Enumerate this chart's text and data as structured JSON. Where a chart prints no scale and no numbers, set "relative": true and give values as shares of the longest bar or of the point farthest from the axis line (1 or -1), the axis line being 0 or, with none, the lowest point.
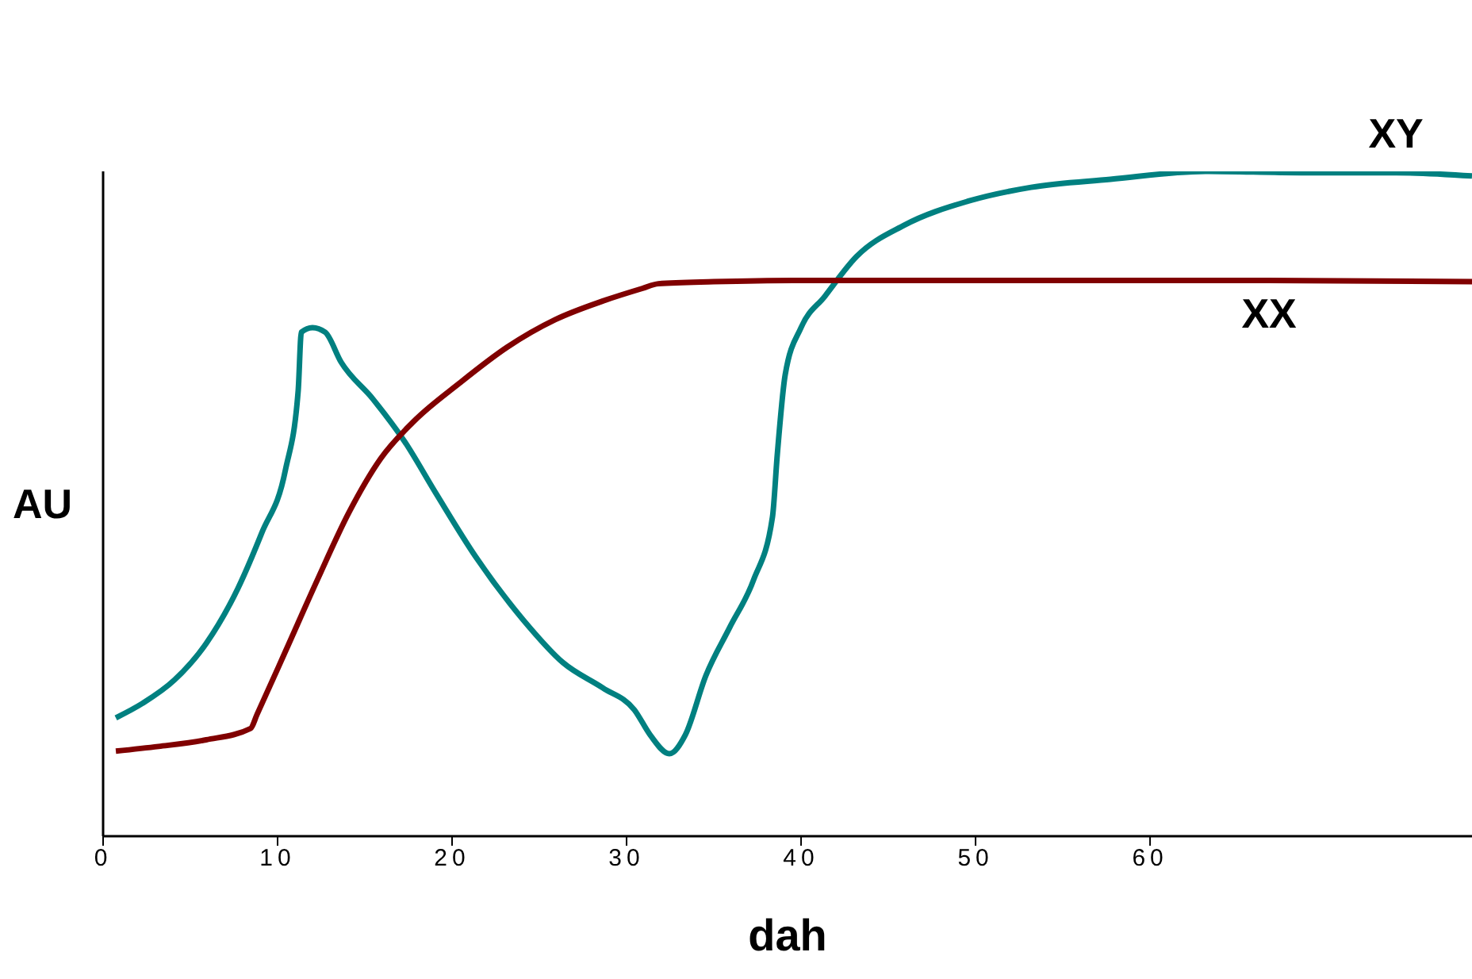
{
  "chart_data": {
    "type": "line",
    "xlabel": "dah",
    "ylabel": "AU",
    "relative": true,
    "xlim": [
      0,
      78.45
    ],
    "xticks": [
      0,
      10,
      20,
      30,
      40,
      50,
      60
    ],
    "grid": false,
    "legend": false,
    "marker": "none",
    "line_style": "solid",
    "series": [
      {
        "name": "XY",
        "color": "#008080",
        "x": [
          0.73,
          2.27,
          4.09,
          5.91,
          7.73,
          9.09,
          10.45,
          11.18,
          11.36,
          12,
          12.73,
          13.64,
          15.45,
          17.27,
          19.09,
          21.36,
          24.09,
          26.36,
          28.64,
          30.45,
          31.36,
          32.45,
          33.36,
          34.55,
          35.91,
          37.27,
          38.36,
          38.64,
          39.09,
          40,
          41.36,
          43.18,
          45.91,
          49.55,
          53.18,
          57.73,
          63.18,
          68.64,
          74.09,
          78.45
        ],
        "values": [
          0.178,
          0.2,
          0.235,
          0.29,
          0.373,
          0.456,
          0.551,
          0.67,
          0.758,
          0.765,
          0.758,
          0.713,
          0.658,
          0.594,
          0.515,
          0.42,
          0.325,
          0.261,
          0.223,
          0.19,
          0.152,
          0.124,
          0.152,
          0.242,
          0.314,
          0.385,
          0.48,
          0.575,
          0.694,
          0.765,
          0.812,
          0.872,
          0.919,
          0.955,
          0.976,
          0.988,
          1,
          0.998,
          0.998,
          0.993
        ]
      },
      {
        "name": "XX",
        "color": "#800000",
        "x": [
          0.73,
          3.18,
          5.91,
          8.45,
          8.82,
          10.45,
          12.27,
          14.09,
          15.91,
          17.73,
          20.45,
          23.18,
          25.91,
          28.64,
          30.91,
          31.82,
          35,
          39.55,
          48.64,
          57.73,
          66.82,
          78.45
        ],
        "values": [
          0.128,
          0.135,
          0.145,
          0.162,
          0.183,
          0.278,
          0.385,
          0.487,
          0.568,
          0.622,
          0.682,
          0.736,
          0.777,
          0.805,
          0.824,
          0.831,
          0.834,
          0.836,
          0.836,
          0.836,
          0.836,
          0.834
        ]
      }
    ]
  }
}
